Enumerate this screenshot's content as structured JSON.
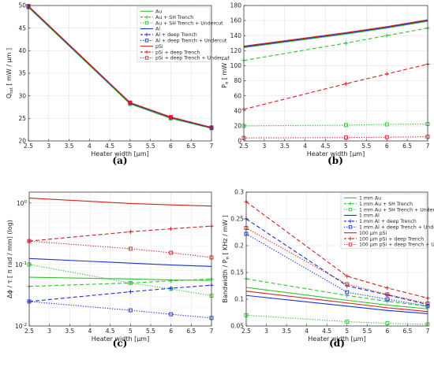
{
  "panel_labels": [
    "(a)",
    "(b)",
    "(c)",
    "(d)"
  ],
  "colors": {
    "Au": "#2fc42f",
    "Al": "#1d2fd6",
    "pSi": "#d21f1f"
  },
  "chart_data": [
    {
      "type": "line",
      "panel": "(a)",
      "xlabel": "Heater width [μm]",
      "ylabel": "Q_tot [ mW / μm ]",
      "ylabel_main": "Q",
      "ylabel_sub": "tot",
      "ylabel_rest": " [ mW / μm ]",
      "xlim": [
        2.5,
        7
      ],
      "ylim": [
        20,
        50
      ],
      "yscale": "linear",
      "xticks": [
        2.5,
        3,
        3.5,
        4,
        4.5,
        5,
        5.5,
        6,
        6.5,
        7
      ],
      "xticklabels": [
        "2.5",
        "3",
        "3.5",
        "4",
        "4.5",
        "5",
        "5.5",
        "6",
        "6.5",
        "7"
      ],
      "yticks": [
        20,
        25,
        30,
        35,
        40,
        45,
        50
      ],
      "yticklabels": [
        "20",
        "25",
        "30",
        "35",
        "40",
        "45",
        "50"
      ],
      "grid": true,
      "legend": "top-right",
      "x": [
        2.5,
        5,
        6,
        7
      ],
      "series": [
        {
          "name": "Au",
          "group": "Au",
          "style": "solid",
          "marker": "none",
          "values": [
            49.6,
            28.2,
            25.0,
            22.8
          ]
        },
        {
          "name": "Au + SH Trench",
          "group": "Au",
          "style": "dashed",
          "marker": "plus",
          "values": [
            49.6,
            28.2,
            25.0,
            22.8
          ]
        },
        {
          "name": "Au + SH Trench + Undercut",
          "group": "Au",
          "style": "dotted",
          "marker": "square",
          "values": [
            49.6,
            28.2,
            25.0,
            22.8
          ]
        },
        {
          "name": "Al",
          "group": "Al",
          "style": "solid",
          "marker": "none",
          "values": [
            49.8,
            28.4,
            25.2,
            22.9
          ]
        },
        {
          "name": "Al + deep Trench",
          "group": "Al",
          "style": "dashed",
          "marker": "plus",
          "values": [
            49.8,
            28.4,
            25.2,
            22.9
          ]
        },
        {
          "name": "Al + deep Trench + Undercut",
          "group": "Al",
          "style": "dotted",
          "marker": "square",
          "values": [
            49.8,
            28.4,
            25.2,
            22.9
          ]
        },
        {
          "name": "pSi",
          "group": "pSi",
          "style": "solid",
          "marker": "none",
          "values": [
            49.9,
            28.5,
            25.3,
            23.0
          ]
        },
        {
          "name": "pSi + deep Trench",
          "group": "pSi",
          "style": "dashed",
          "marker": "plus",
          "values": [
            49.9,
            28.5,
            25.3,
            23.0
          ]
        },
        {
          "name": "pSi + deep Trench + Undercut",
          "group": "pSi",
          "style": "dotted",
          "marker": "square",
          "values": [
            49.9,
            28.5,
            25.3,
            23.0
          ]
        }
      ]
    },
    {
      "type": "line",
      "panel": "(b)",
      "xlabel": "Heater width [μm]",
      "ylabel": "P_π [ mW ]",
      "ylabel_main": "P",
      "ylabel_sub": "π",
      "ylabel_rest": " [ mW ]",
      "xlim": [
        2.5,
        7
      ],
      "ylim": [
        0,
        180
      ],
      "yscale": "linear",
      "xticks": [
        2.5,
        3,
        3.5,
        4,
        4.5,
        5,
        5.5,
        6,
        6.5,
        7
      ],
      "xticklabels": [
        "2.5",
        "3",
        "3.5",
        "4",
        "4.5",
        "5",
        "5.5",
        "6",
        "6.5",
        "7"
      ],
      "yticks": [
        0,
        20,
        40,
        60,
        80,
        100,
        120,
        140,
        160,
        180
      ],
      "yticklabels": [
        "0",
        "20",
        "40",
        "60",
        "80",
        "100",
        "120",
        "140",
        "160",
        "180"
      ],
      "grid": true,
      "legend": "none",
      "x": [
        2.5,
        5,
        6,
        7
      ],
      "series": [
        {
          "group": "Au",
          "style": "solid",
          "marker": "none",
          "values": [
            124,
            142,
            150,
            159
          ]
        },
        {
          "group": "Au",
          "style": "dashed",
          "marker": "plus",
          "values": [
            107,
            130,
            140,
            150
          ]
        },
        {
          "group": "Au",
          "style": "dotted",
          "marker": "square",
          "values": [
            20,
            21,
            22,
            22.5
          ]
        },
        {
          "group": "Al",
          "style": "solid",
          "marker": "none",
          "values": [
            125,
            143,
            151,
            160
          ]
        },
        {
          "group": "pSi",
          "style": "solid",
          "marker": "none",
          "values": [
            126,
            144,
            152,
            161
          ]
        },
        {
          "group": "pSi",
          "style": "dashed",
          "marker": "plus",
          "values": [
            42,
            76,
            89,
            102
          ]
        },
        {
          "group": "pSi",
          "style": "dotted",
          "marker": "square",
          "values": [
            4,
            4.5,
            5,
            5.5
          ]
        }
      ]
    },
    {
      "type": "line",
      "panel": "(c)",
      "xlabel": "Heater width [μm]",
      "ylabel": "Δϕ / τ [ π rad / mm] (log)",
      "xlim": [
        2.5,
        7
      ],
      "ylim": [
        0.01,
        1.5
      ],
      "yscale": "log",
      "xticks": [
        2.5,
        3,
        3.5,
        4,
        4.5,
        5,
        5.5,
        6,
        6.5,
        7
      ],
      "xticklabels": [
        "2.5",
        "3",
        "3.5",
        "4",
        "4.5",
        "5",
        "5.5",
        "6",
        "6.5",
        "7"
      ],
      "yticks": [
        0.01,
        0.1,
        1
      ],
      "yticklabels_base": [
        "10",
        "10",
        "10"
      ],
      "yticklabels_exp": [
        "-2",
        "-1",
        "0"
      ],
      "grid": true,
      "legend": "none",
      "x": [
        2.5,
        5,
        6,
        7
      ],
      "series": [
        {
          "group": "pSi",
          "style": "solid",
          "marker": "none",
          "values": [
            1.2,
            0.98,
            0.93,
            0.89
          ]
        },
        {
          "group": "pSi",
          "style": "dashed",
          "marker": "plus",
          "values": [
            0.24,
            0.34,
            0.38,
            0.42
          ]
        },
        {
          "group": "pSi",
          "style": "dotted",
          "marker": "square",
          "values": [
            0.24,
            0.18,
            0.155,
            0.13
          ]
        },
        {
          "group": "Al",
          "style": "solid",
          "marker": "none",
          "values": [
            0.125,
            0.105,
            0.098,
            0.093
          ]
        },
        {
          "group": "Au",
          "style": "solid",
          "marker": "none",
          "values": [
            0.062,
            0.058,
            0.056,
            0.055
          ]
        },
        {
          "group": "Au",
          "style": "dashed",
          "marker": "plus",
          "values": [
            0.044,
            0.05,
            0.054,
            0.058
          ]
        },
        {
          "group": "Au",
          "style": "dotted",
          "marker": "square",
          "values": [
            0.1,
            0.05,
            0.04,
            0.031
          ]
        },
        {
          "group": "Al",
          "style": "dashed",
          "marker": "plus",
          "values": [
            0.025,
            0.036,
            0.041,
            0.046
          ]
        },
        {
          "group": "Al",
          "style": "dotted",
          "marker": "square",
          "values": [
            0.025,
            0.018,
            0.0155,
            0.0135
          ]
        }
      ]
    },
    {
      "type": "line",
      "panel": "(d)",
      "xlabel": "Heater width [μm]",
      "ylabel": "Bandwidth / P_π [ KHz / mW ]",
      "ylabel_main": "Bandwidth / P",
      "ylabel_sub": "π",
      "ylabel_rest": " [ KHz / mW ]",
      "xlim": [
        2.5,
        7
      ],
      "ylim": [
        0.05,
        0.3
      ],
      "yscale": "linear",
      "xticks": [
        2.5,
        3,
        3.5,
        4,
        4.5,
        5,
        5.5,
        6,
        6.5,
        7
      ],
      "xticklabels": [
        "2.5",
        "3",
        "3.5",
        "4",
        "4.5",
        "5",
        "5.5",
        "6",
        "6.5",
        "7"
      ],
      "yticks": [
        0.05,
        0.1,
        0.15,
        0.2,
        0.25,
        0.3
      ],
      "yticklabels": [
        "0.05",
        "0.1",
        "0.15",
        "0.2",
        "0.25",
        "0.3"
      ],
      "grid": true,
      "legend": "top-right",
      "x": [
        2.5,
        5,
        6,
        7
      ],
      "series": [
        {
          "name": "1 mm Au",
          "group": "Au",
          "style": "solid",
          "marker": "none",
          "values": [
            0.122,
            0.098,
            0.089,
            0.082
          ]
        },
        {
          "name": "1 mm Au + SH Trench",
          "group": "Au",
          "style": "dashed",
          "marker": "plus",
          "values": [
            0.138,
            0.107,
            0.096,
            0.087
          ]
        },
        {
          "name": "1 mm Au + SH Trench + Undercut",
          "group": "Au",
          "style": "dotted",
          "marker": "square",
          "values": [
            0.07,
            0.058,
            0.055,
            0.053
          ]
        },
        {
          "name": "1 mm Al",
          "group": "Al",
          "style": "solid",
          "marker": "none",
          "values": [
            0.107,
            0.087,
            0.079,
            0.073
          ]
        },
        {
          "name": "1 mm Al + deep Trench",
          "group": "Al",
          "style": "dashed",
          "marker": "plus",
          "values": [
            0.25,
            0.125,
            0.108,
            0.09
          ]
        },
        {
          "name": "1 mm Al + deep Trench + Undercut",
          "group": "Al",
          "style": "dotted",
          "marker": "square",
          "values": [
            0.222,
            0.113,
            0.1,
            0.087
          ]
        },
        {
          "name": "100 μm pSi",
          "group": "pSi",
          "style": "solid",
          "marker": "none",
          "values": [
            0.115,
            0.093,
            0.084,
            0.077
          ]
        },
        {
          "name": "100 μm pSi + deep Trench",
          "group": "pSi",
          "style": "dashed",
          "marker": "plus",
          "values": [
            0.282,
            0.143,
            0.121,
            0.102
          ]
        },
        {
          "name": "100 μm pSi + deep Trench + Undercut",
          "group": "pSi",
          "style": "dotted",
          "marker": "square",
          "values": [
            0.233,
            0.128,
            0.109,
            0.092
          ]
        }
      ]
    }
  ]
}
